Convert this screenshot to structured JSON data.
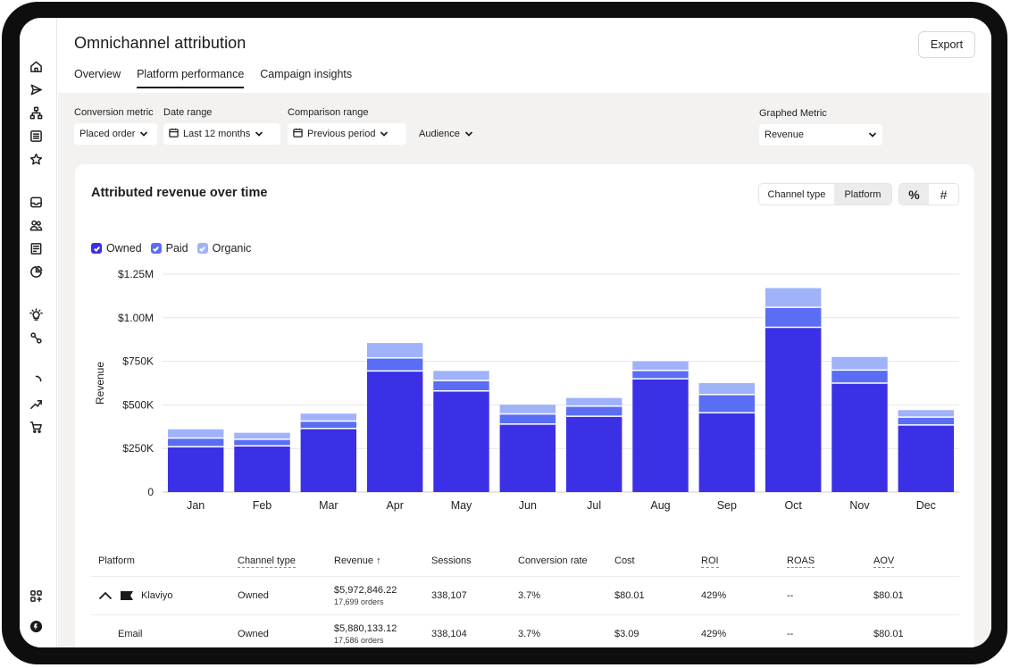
{
  "header": {
    "title": "Omnichannel attribution",
    "export_label": "Export",
    "tabs": [
      {
        "label": "Overview",
        "active": false
      },
      {
        "label": "Platform performance",
        "active": true
      },
      {
        "label": "Campaign insights",
        "active": false
      }
    ]
  },
  "filters": {
    "conversion_metric": {
      "label": "Conversion metric",
      "value": "Placed order"
    },
    "date_range": {
      "label": "Date range",
      "value": "Last 12 months"
    },
    "comparison_range": {
      "label": "Comparison range",
      "value": "Previous period"
    },
    "audience": {
      "value": "Audience"
    },
    "graphed_metric": {
      "label": "Graphed Metric",
      "value": "Revenue"
    }
  },
  "card": {
    "title": "Attributed revenue over time",
    "toggle": {
      "options": [
        "Channel type",
        "Platform"
      ],
      "selected": "Platform"
    },
    "unit_toggle": {
      "options": [
        "%",
        "#"
      ],
      "selected": "%"
    },
    "legend": [
      {
        "label": "Owned",
        "color": "#3b30e6"
      },
      {
        "label": "Paid",
        "color": "#5a6df5"
      },
      {
        "label": "Organic",
        "color": "#9fb2fa"
      }
    ]
  },
  "chart_data": {
    "type": "bar",
    "stacked": true,
    "categories": [
      "Jan",
      "Feb",
      "Mar",
      "Apr",
      "May",
      "Jun",
      "Jul",
      "Aug",
      "Sep",
      "Oct",
      "Nov",
      "Dec"
    ],
    "series": [
      {
        "name": "Owned",
        "color": "#3b30e6",
        "values": [
          260000,
          265000,
          365000,
          695000,
          580000,
          390000,
          435000,
          650000,
          455000,
          945000,
          625000,
          385000
        ]
      },
      {
        "name": "Paid",
        "color": "#5a6df5",
        "values": [
          50000,
          38000,
          42000,
          75000,
          60000,
          58000,
          58000,
          48000,
          105000,
          115000,
          75000,
          45000
        ]
      },
      {
        "name": "Organic",
        "color": "#9fb2fa",
        "values": [
          50000,
          37000,
          43000,
          85000,
          55000,
          53000,
          47000,
          52000,
          65000,
          110000,
          75000,
          40000
        ]
      }
    ],
    "ylabel": "Revenue",
    "xlabel": "",
    "ylim": [
      0,
      1250000
    ],
    "yticks": [
      "0",
      "$250K",
      "$500K",
      "$750K",
      "$1.00M",
      "$1.25M"
    ],
    "grid": true,
    "legend_position": "top-left"
  },
  "table": {
    "columns": [
      "Platform",
      "Channel type",
      "Revenue ↑",
      "Sessions",
      "Conversion rate",
      "Cost",
      "ROI",
      "ROAS",
      "AOV"
    ],
    "rows": [
      {
        "platform": "Klaviyo",
        "channel_type": "Owned",
        "revenue": "$5,972,846.22",
        "orders": "17,699 orders",
        "sessions": "338,107",
        "conversion_rate": "3.7%",
        "cost": "$80.01",
        "roi": "429%",
        "roas": "--",
        "aov": "$80.01"
      },
      {
        "platform": "Email",
        "channel_type": "Owned",
        "revenue": "$5,880,133.12",
        "orders": "17,586 orders",
        "sessions": "338,104",
        "conversion_rate": "3.7%",
        "cost": "$3.09",
        "roi": "429%",
        "roas": "--",
        "aov": "$80.01"
      }
    ]
  },
  "sidebar": {
    "icons": [
      "home-icon",
      "send-icon",
      "flow-icon",
      "list-icon",
      "star-icon",
      "inbox-icon",
      "audience-icon",
      "form-icon",
      "pie-chart-icon",
      "lightbulb-icon",
      "integrations-icon",
      "loading-icon",
      "trend-icon",
      "cart-icon",
      "apps-icon",
      "account-icon"
    ]
  }
}
